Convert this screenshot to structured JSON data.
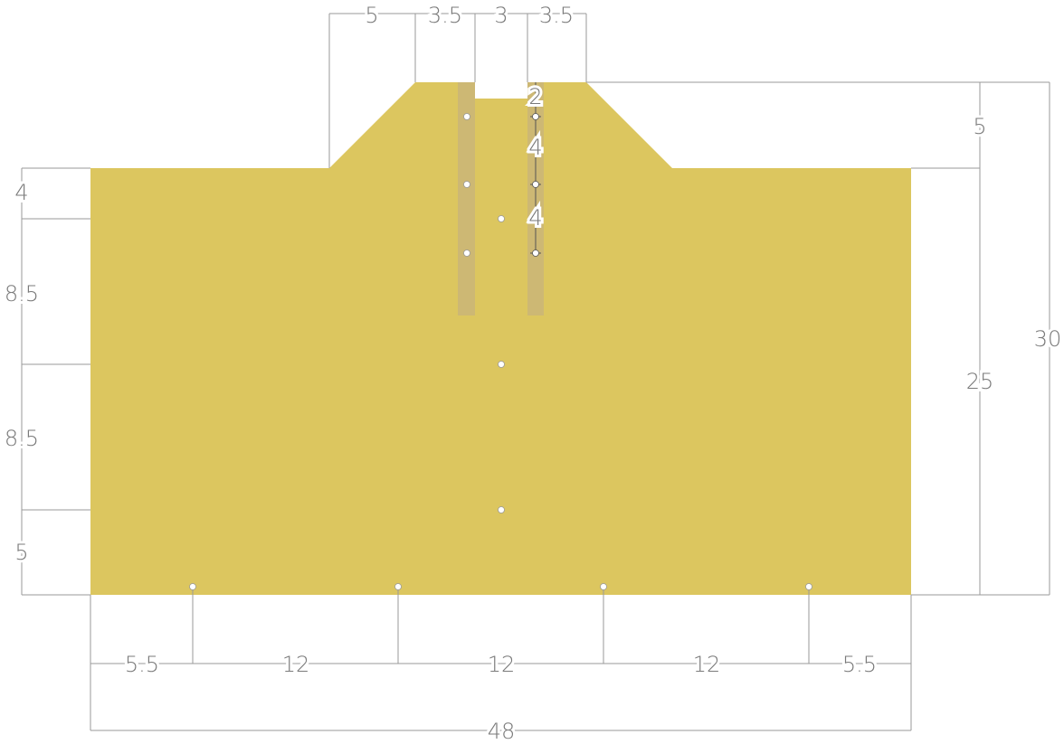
{
  "dimensions": {
    "top": [
      5,
      3.5,
      3,
      3.5
    ],
    "inner": [
      2,
      4,
      4
    ],
    "left": [
      4,
      8.5,
      8.5,
      5
    ],
    "right": [
      5,
      25,
      30
    ],
    "bottom": [
      5.5,
      12,
      12,
      12,
      5.5
    ],
    "overall_width": 48
  }
}
